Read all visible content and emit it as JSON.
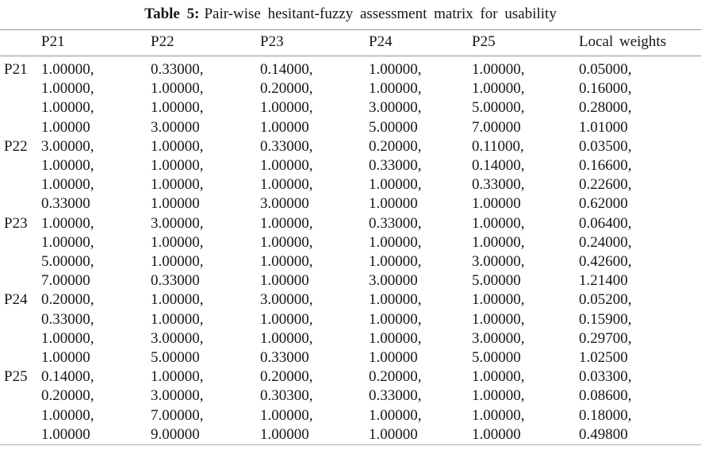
{
  "title": {
    "label": "Table 5:",
    "text": "Pair-wise hesitant-fuzzy assessment matrix for usability"
  },
  "colors": {
    "background": "#ffffff",
    "text": "#161616",
    "rule": "#919191"
  },
  "table": {
    "columns": [
      "P21",
      "P22",
      "P23",
      "P24",
      "P25",
      "Local weights"
    ],
    "rows": [
      {
        "label": "P21",
        "cells": [
          [
            "1.00000,",
            "1.00000,",
            "1.00000,",
            "1.00000"
          ],
          [
            "0.33000,",
            "1.00000,",
            "1.00000,",
            "3.00000"
          ],
          [
            "0.14000,",
            "0.20000,",
            "1.00000,",
            "1.00000"
          ],
          [
            "1.00000,",
            "1.00000,",
            "3.00000,",
            "5.00000"
          ],
          [
            "1.00000,",
            "1.00000,",
            "5.00000,",
            "7.00000"
          ],
          [
            "0.05000,",
            "0.16000,",
            "0.28000,",
            "1.01000"
          ]
        ]
      },
      {
        "label": "P22",
        "cells": [
          [
            "3.00000,",
            "1.00000,",
            "1.00000,",
            "0.33000"
          ],
          [
            "1.00000,",
            "1.00000,",
            "1.00000,",
            "1.00000"
          ],
          [
            "0.33000,",
            "1.00000,",
            "1.00000,",
            "3.00000"
          ],
          [
            "0.20000,",
            "0.33000,",
            "1.00000,",
            "1.00000"
          ],
          [
            "0.11000,",
            "0.14000,",
            "0.33000,",
            "1.00000"
          ],
          [
            "0.03500,",
            "0.16600,",
            "0.22600,",
            "0.62000"
          ]
        ]
      },
      {
        "label": "P23",
        "cells": [
          [
            "1.00000,",
            "1.00000,",
            "5.00000,",
            "7.00000"
          ],
          [
            "3.00000,",
            "1.00000,",
            "1.00000,",
            "0.33000"
          ],
          [
            "1.00000,",
            "1.00000,",
            "1.00000,",
            "1.00000"
          ],
          [
            "0.33000,",
            "1.00000,",
            "1.00000,",
            "3.00000"
          ],
          [
            "1.00000,",
            "1.00000,",
            "3.00000,",
            "5.00000"
          ],
          [
            "0.06400,",
            "0.24000,",
            "0.42600,",
            "1.21400"
          ]
        ]
      },
      {
        "label": "P24",
        "cells": [
          [
            "0.20000,",
            "0.33000,",
            "1.00000,",
            "1.00000"
          ],
          [
            "1.00000,",
            "1.00000,",
            "3.00000,",
            "5.00000"
          ],
          [
            "3.00000,",
            "1.00000,",
            "1.00000,",
            "0.33000"
          ],
          [
            "1.00000,",
            "1.00000,",
            "1.00000,",
            "1.00000"
          ],
          [
            "1.00000,",
            "1.00000,",
            "3.00000,",
            "5.00000"
          ],
          [
            "0.05200,",
            "0.15900,",
            "0.29700,",
            "1.02500"
          ]
        ]
      },
      {
        "label": "P25",
        "cells": [
          [
            "0.14000,",
            "0.20000,",
            "1.00000,",
            "1.00000"
          ],
          [
            "1.00000,",
            "3.00000,",
            "7.00000,",
            "9.00000"
          ],
          [
            "0.20000,",
            "0.30300,",
            "1.00000,",
            "1.00000"
          ],
          [
            "0.20000,",
            "0.33000,",
            "1.00000,",
            "1.00000"
          ],
          [
            "1.00000,",
            "1.00000,",
            "1.00000,",
            "1.00000"
          ],
          [
            "0.03300,",
            "0.08600,",
            "0.18000,",
            "0.49800"
          ]
        ]
      }
    ]
  }
}
